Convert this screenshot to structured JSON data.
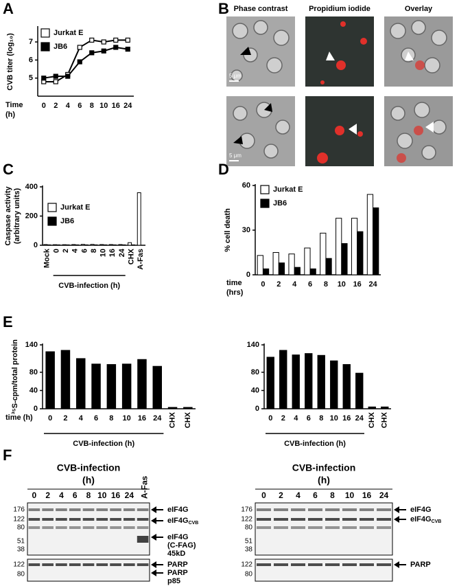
{
  "panel_labels": [
    "A",
    "B",
    "C",
    "D",
    "E",
    "F"
  ],
  "chart_data": [
    {
      "type": "line",
      "ylabel": "CVB titer (log₁₀)",
      "xlabel_lines": [
        "Time",
        "(h)"
      ],
      "categories": [
        "0",
        "2",
        "4",
        "6",
        "8",
        "10",
        "16",
        "24"
      ],
      "ylim": [
        4,
        7.8
      ],
      "yticks": [
        5,
        6,
        7
      ],
      "series": [
        {
          "name": "Jurkat E",
          "color": "#ffffff",
          "values": [
            4.8,
            4.8,
            5.2,
            6.7,
            7.1,
            7.0,
            7.1,
            7.1
          ]
        },
        {
          "name": "JB6",
          "color": "#000000",
          "values": [
            5.0,
            5.1,
            5.1,
            5.9,
            6.4,
            6.5,
            6.7,
            6.6
          ]
        }
      ]
    },
    {
      "type": "bar",
      "ylabel_lines": [
        "Caspase activity",
        "(arbitrary units)"
      ],
      "group_label": "CVB-infection (h)",
      "categories": [
        "Mock",
        "0",
        "2",
        "4",
        "6",
        "8",
        "10",
        "16",
        "24",
        "CHX",
        "A-Fas"
      ],
      "ylim": [
        0,
        400
      ],
      "yticks": [
        0,
        200,
        400
      ],
      "series": [
        {
          "name": "Jurkat E",
          "color": "#ffffff",
          "values": [
            5,
            4,
            4,
            5,
            6,
            6,
            5,
            5,
            5,
            18,
            360
          ]
        },
        {
          "name": "JB6",
          "color": "#000000",
          "values": [
            3,
            3,
            3,
            3,
            3,
            3,
            3,
            3,
            3,
            3,
            null
          ]
        }
      ]
    },
    {
      "type": "bar",
      "ylabel": "% cell death",
      "xlabel_lines": [
        "time",
        "(hrs)"
      ],
      "categories": [
        "0",
        "2",
        "4",
        "6",
        "8",
        "10",
        "16",
        "24"
      ],
      "ylim": [
        0,
        60
      ],
      "yticks": [
        0,
        30,
        60
      ],
      "series": [
        {
          "name": "Jurkat E",
          "color": "#ffffff",
          "values": [
            13,
            15,
            14,
            18,
            28,
            38,
            38,
            54
          ]
        },
        {
          "name": "JB6",
          "color": "#000000",
          "values": [
            4,
            8,
            5,
            4,
            11,
            21,
            29,
            45
          ]
        }
      ]
    },
    {
      "type": "bar",
      "ylabel": "³⁵S-cpm/total protein",
      "xlabel_lines": [
        "time (h)"
      ],
      "group_label": "CVB-infection (h)",
      "categories": [
        "0",
        "2",
        "4",
        "6",
        "8",
        "10",
        "16",
        "24",
        "CHX",
        "CHX"
      ],
      "values": [
        125,
        128,
        110,
        98,
        97,
        98,
        108,
        93,
        3,
        3
      ],
      "color": "#000000",
      "ylim": [
        0,
        140
      ],
      "yticks": [
        0,
        40,
        80,
        140
      ]
    },
    {
      "type": "bar",
      "group_label": "CVB-infection (h)",
      "categories": [
        "0",
        "2",
        "4",
        "6",
        "8",
        "10",
        "16",
        "24",
        "CHX",
        "CHX"
      ],
      "values": [
        113,
        128,
        118,
        121,
        117,
        105,
        97,
        78,
        4,
        4
      ],
      "color": "#000000",
      "ylim": [
        0,
        140
      ],
      "yticks": [
        0,
        40,
        80,
        140
      ]
    }
  ],
  "micrographs": {
    "columns": [
      "Phase contrast",
      "Propidium iodide",
      "Overlay"
    ],
    "scale_bar": "5 μm"
  },
  "blots": [
    {
      "title": "CVB-infection",
      "unit": "(h)",
      "lanes": [
        "0",
        "2",
        "4",
        "6",
        "8",
        "10",
        "16",
        "24",
        "A-Fas"
      ],
      "markers_top": [
        176,
        122,
        80,
        51,
        38
      ],
      "markers_bottom": [
        122,
        80
      ],
      "labels": [
        {
          "main": "eIF4G"
        },
        {
          "main": "eIF4G",
          "sub": "CVB"
        },
        {
          "lines": [
            "eIF4G",
            "(C-FAG)",
            "45kD"
          ]
        },
        {
          "main": "PARP"
        },
        {
          "lines": [
            "PARP",
            "p85"
          ]
        }
      ]
    },
    {
      "title": "CVB-infection",
      "unit": "(h)",
      "lanes": [
        "0",
        "2",
        "4",
        "6",
        "8",
        "10",
        "16",
        "24"
      ],
      "markers_top": [
        176,
        122,
        80,
        51,
        38
      ],
      "markers_bottom": [
        122,
        80
      ],
      "labels": [
        {
          "main": "eIF4G"
        },
        {
          "main": "eIF4G",
          "sub": "CVB"
        },
        {
          "main": "PARP"
        }
      ]
    }
  ]
}
